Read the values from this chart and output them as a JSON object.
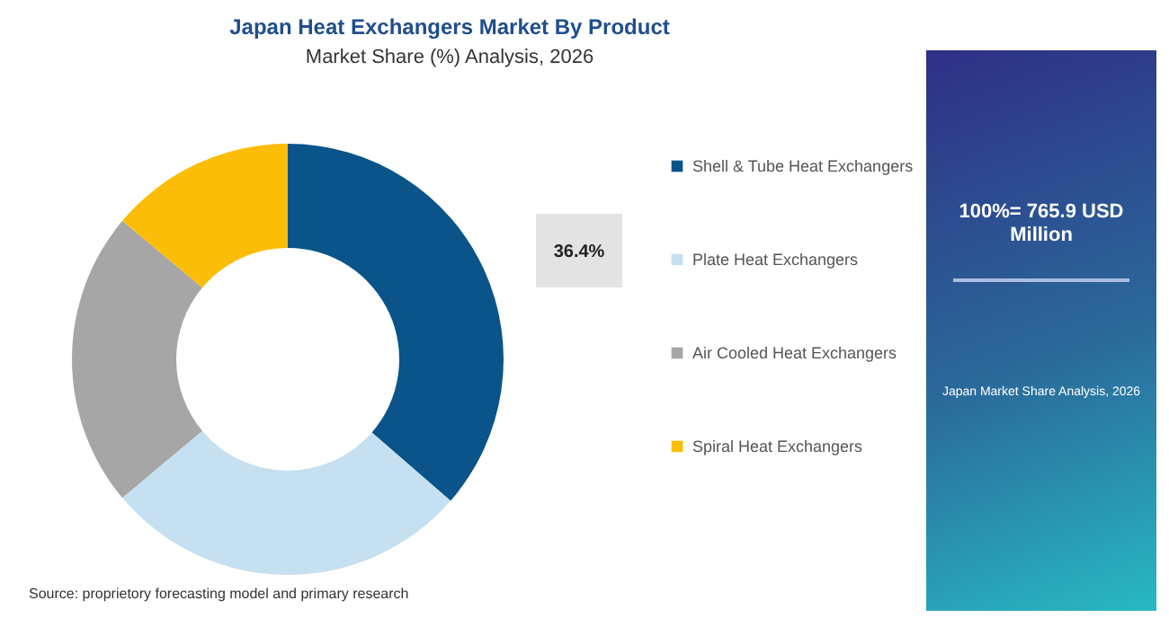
{
  "chart_data": {
    "type": "donut",
    "title": "Japan Heat Exchangers Market By Product",
    "subtitle": "Market Share (%) Analysis, 2026",
    "categories": [
      "Shell & Tube Heat Exchangers",
      "Plate Heat Exchangers",
      "Air Cooled Heat Exchangers",
      "Spiral Heat Exchangers"
    ],
    "values": [
      36.4,
      27.5,
      22.2,
      13.9
    ],
    "colors": [
      "#0b5489",
      "#c5e0f0",
      "#a6a6a6",
      "#fbbd08"
    ],
    "value_labels": [
      "36.4%",
      null,
      null,
      null
    ],
    "legend": "right",
    "annotations": [
      "100%= 765.9 USD Million",
      "Japan Market Share Analysis, 2026",
      "Source: proprietory forecasting model and primary research"
    ]
  }
}
